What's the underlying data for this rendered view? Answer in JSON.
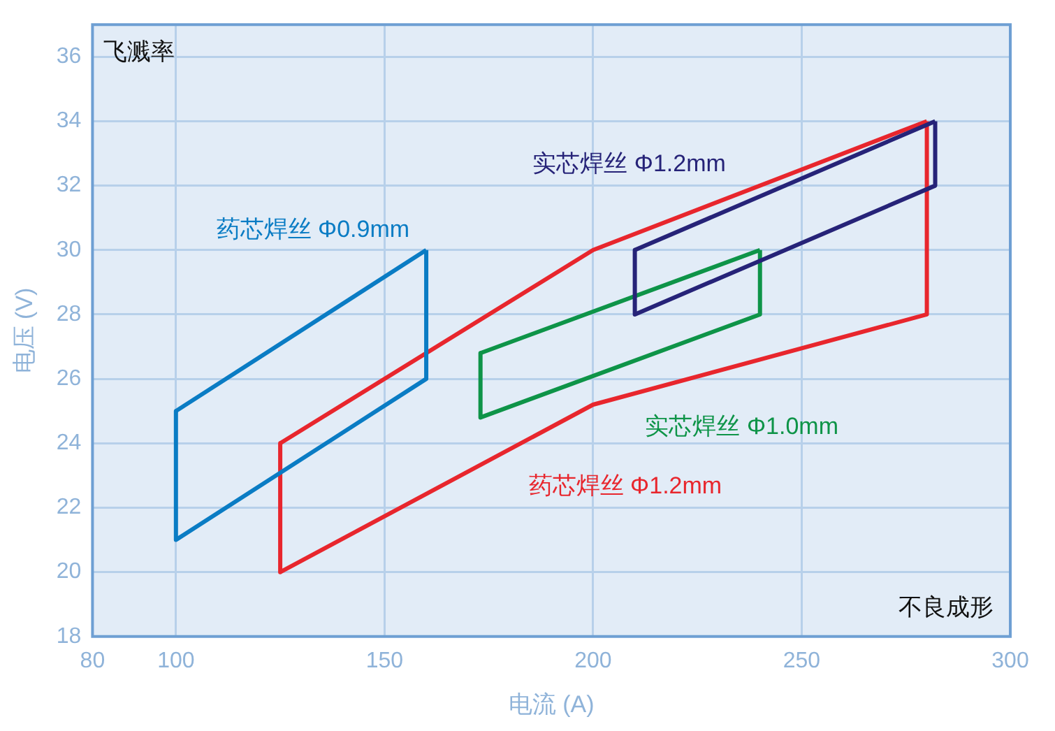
{
  "chart_data": {
    "type": "line",
    "xlabel": "电流 (A)",
    "ylabel": "电压 (V)",
    "xlim": [
      80,
      300
    ],
    "xticks": [
      80,
      100,
      150,
      200,
      250,
      300
    ],
    "ylim": [
      18,
      37
    ],
    "yticks": [
      18,
      20,
      22,
      24,
      26,
      28,
      30,
      32,
      34,
      36
    ],
    "grid": true,
    "legend": false,
    "marker": "none",
    "line_style": "solid",
    "annotations": [
      "飞溅率",
      "不良成形"
    ],
    "series": [
      {
        "name": "药芯焊丝 Φ0.9mm",
        "color": "#0a7cc4",
        "x": [
          100,
          100,
          160,
          160
        ],
        "values": [
          25,
          21,
          26,
          30
        ]
      },
      {
        "color": "#0a7cc4",
        "x": [
          100,
          160
        ],
        "values": [
          25,
          30
        ]
      },
      {
        "name": "实芯焊丝 Φ1.2mm",
        "color": "#262378",
        "x": [
          210,
          210,
          282,
          282
        ],
        "values": [
          30,
          28,
          32,
          34
        ]
      },
      {
        "color": "#262378",
        "x": [
          210,
          282
        ],
        "values": [
          30,
          34
        ]
      },
      {
        "name": "实芯焊丝 Φ1.0mm",
        "color": "#0e9448",
        "x": [
          173,
          173,
          240,
          240
        ],
        "values": [
          26.8,
          24.8,
          28,
          30
        ]
      },
      {
        "color": "#0e9448",
        "x": [
          173,
          240
        ],
        "values": [
          26.8,
          30
        ]
      },
      {
        "name": "药芯焊丝 Φ1.2mm",
        "color": "#e8262d",
        "x": [
          125,
          125,
          200,
          280,
          280
        ],
        "values": [
          24,
          20,
          25.2,
          28,
          34
        ]
      },
      {
        "color": "#e8262d",
        "x": [
          125,
          200,
          280
        ],
        "values": [
          24,
          30,
          34
        ]
      }
    ]
  }
}
